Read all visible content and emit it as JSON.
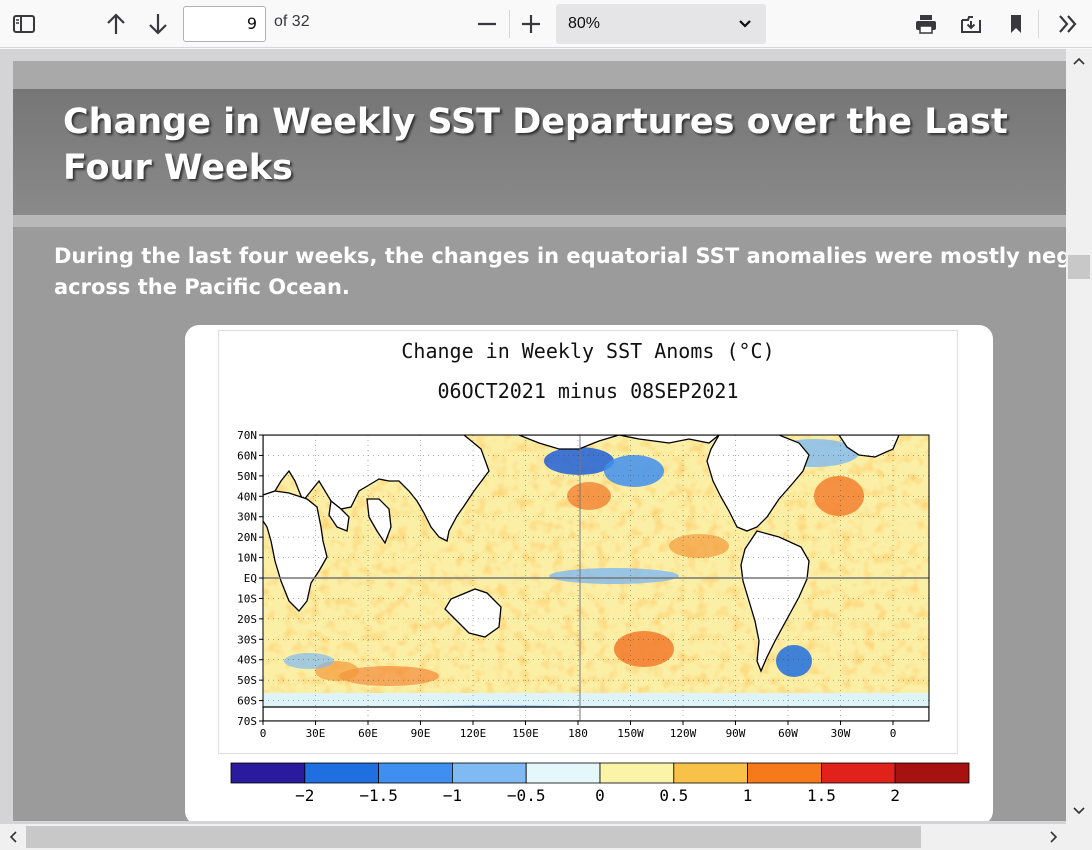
{
  "toolbar": {
    "page_number": "9",
    "page_count": "of 32",
    "zoom": "80%",
    "icons": [
      "sidebar-toggle-icon",
      "arrow-up-icon",
      "arrow-down-icon",
      "zoom-out-icon",
      "zoom-in-icon",
      "print-icon",
      "download-icon",
      "bookmark-icon",
      "tools-chevron-icon"
    ]
  },
  "slide": {
    "title": "Change in Weekly SST Departures over the Last Four Weeks",
    "text_line1": "During the last four weeks, the changes in equatorial SST anomalies were mostly neg",
    "text_line2": "across the Pacific Ocean."
  },
  "figure": {
    "title_line1": "Change in Weekly SST Anoms (°C)",
    "title_line2": "06OCT2021 minus 08SEP2021",
    "lat_labels": [
      "70N",
      "60N",
      "50N",
      "40N",
      "30N",
      "20N",
      "10N",
      "EQ",
      "10S",
      "20S",
      "30S",
      "40S",
      "50S",
      "60S",
      "70S"
    ],
    "lon_labels": [
      "0",
      "30E",
      "60E",
      "90E",
      "120E",
      "150E",
      "180",
      "150W",
      "120W",
      "90W",
      "60W",
      "30W",
      "0"
    ],
    "colorbar_labels": [
      "−2",
      "−1.5",
      "−1",
      "−0.5",
      "0",
      "0.5",
      "1",
      "1.5",
      "2"
    ],
    "colorbar_colors": [
      "#2a1a9e",
      "#1f6fe0",
      "#3f8ff0",
      "#7fbaf2",
      "#e4f7fb",
      "#fbf3a8",
      "#f7c247",
      "#f77a1a",
      "#e0221a",
      "#a5120f"
    ]
  }
}
